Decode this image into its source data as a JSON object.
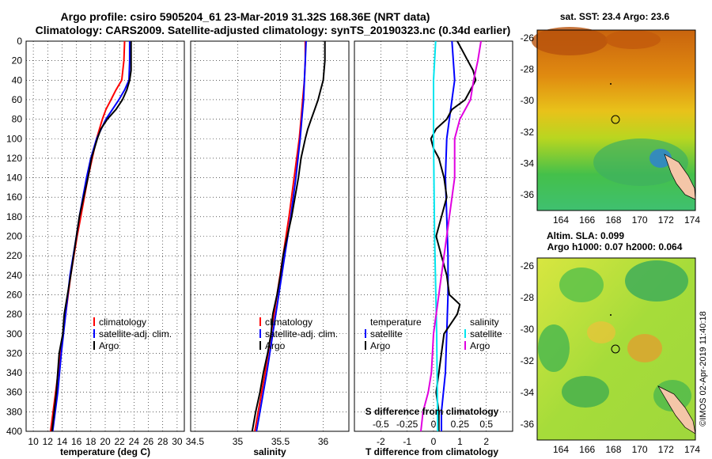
{
  "header": {
    "line1": "Argo profile: csiro 5905204_61 23-Mar-2019 31.32S 168.36E (NRT data)",
    "line2": "Climatology: CARS2009. Satellite-adjusted climatology: synTS_20190323.nc (0.34d earlier)"
  },
  "credit": "©IMOS 02-Apr-2019 11:40:18",
  "colors": {
    "climatology": "#ff0000",
    "satellite": "#0000ff",
    "argo": "#000000",
    "s_satellite": "#00e5ee",
    "s_argo": "#e000e0"
  },
  "chart_data": [
    {
      "type": "line",
      "name": "temperature",
      "xlabel": "temperature (deg C)",
      "ylabel": "",
      "xlim": [
        9,
        31
      ],
      "ylim": [
        400,
        0
      ],
      "xticks": [
        10,
        12,
        14,
        16,
        18,
        20,
        22,
        24,
        26,
        28,
        30
      ],
      "yticks": [
        0,
        20,
        40,
        60,
        80,
        100,
        120,
        140,
        160,
        180,
        200,
        220,
        240,
        260,
        280,
        300,
        320,
        340,
        360,
        380,
        400
      ],
      "legend": [
        "climatology",
        "satellite-adj. clim.",
        "Argo"
      ],
      "series": [
        {
          "name": "climatology",
          "color": "#ff0000",
          "depth": [
            0,
            20,
            40,
            50,
            60,
            70,
            80,
            100,
            120,
            140,
            160,
            180,
            200,
            240,
            280,
            320,
            360,
            400
          ],
          "values": [
            22.7,
            22.6,
            22.3,
            21.5,
            20.8,
            20.1,
            19.6,
            18.8,
            18.2,
            17.6,
            17.1,
            16.6,
            16.1,
            15.2,
            14.5,
            13.8,
            13.1,
            12.4
          ]
        },
        {
          "name": "satellite-adj. clim.",
          "color": "#0000ff",
          "depth": [
            0,
            20,
            40,
            50,
            60,
            70,
            80,
            100,
            120,
            140,
            160,
            180,
            200,
            240,
            280,
            320,
            360,
            400
          ],
          "values": [
            23.4,
            23.4,
            23.3,
            22.7,
            21.9,
            21.0,
            20.1,
            18.8,
            18.0,
            17.4,
            16.9,
            16.4,
            16.0,
            15.1,
            14.5,
            13.9,
            13.4,
            12.7
          ]
        },
        {
          "name": "Argo",
          "color": "#000000",
          "depth": [
            0,
            20,
            30,
            40,
            50,
            60,
            70,
            80,
            90,
            100,
            120,
            140,
            160,
            180,
            200,
            240,
            280,
            300,
            320,
            360,
            400
          ],
          "values": [
            23.6,
            23.6,
            23.6,
            23.4,
            23.0,
            22.4,
            21.5,
            20.3,
            19.4,
            18.9,
            18.1,
            17.6,
            17.0,
            16.4,
            16.0,
            15.2,
            14.3,
            14.1,
            13.6,
            13.2,
            12.6
          ]
        }
      ]
    },
    {
      "type": "line",
      "name": "salinity",
      "xlabel": "salinity",
      "ylabel": "",
      "xlim": [
        34.45,
        36.3
      ],
      "ylim": [
        400,
        0
      ],
      "xticks": [
        34.5,
        35,
        35.5,
        36
      ],
      "xticklabels": [
        "34.5",
        "35",
        "35.5",
        "36"
      ],
      "legend": [
        "climatology",
        "satellite-adj. clim.",
        "Argo"
      ],
      "series": [
        {
          "name": "climatology",
          "color": "#ff0000",
          "depth": [
            0,
            20,
            40,
            60,
            80,
            100,
            140,
            180,
            220,
            260,
            300,
            340,
            380,
            400
          ],
          "values": [
            35.79,
            35.79,
            35.78,
            35.76,
            35.74,
            35.72,
            35.66,
            35.6,
            35.53,
            35.46,
            35.39,
            35.32,
            35.24,
            35.2
          ]
        },
        {
          "name": "satellite-adj. clim.",
          "color": "#0000ff",
          "depth": [
            0,
            20,
            40,
            60,
            80,
            100,
            140,
            180,
            220,
            260,
            300,
            340,
            380,
            400
          ],
          "values": [
            35.8,
            35.79,
            35.78,
            35.77,
            35.75,
            35.73,
            35.68,
            35.62,
            35.55,
            35.48,
            35.41,
            35.34,
            35.26,
            35.22
          ]
        },
        {
          "name": "Argo",
          "color": "#000000",
          "depth": [
            0,
            20,
            30,
            40,
            50,
            60,
            70,
            80,
            90,
            100,
            120,
            140,
            160,
            180,
            200,
            220,
            240,
            260,
            280,
            300,
            320,
            340,
            360,
            380,
            400
          ],
          "values": [
            36.02,
            36.02,
            36.01,
            36.0,
            35.97,
            35.94,
            35.9,
            35.86,
            35.82,
            35.79,
            35.74,
            35.71,
            35.67,
            35.63,
            35.58,
            35.53,
            35.5,
            35.46,
            35.41,
            35.39,
            35.35,
            35.3,
            35.26,
            35.21,
            35.17
          ]
        }
      ]
    },
    {
      "type": "line",
      "name": "difference",
      "xlabel": "T difference from climatology",
      "xlabel_top": "S difference from climatology",
      "xlim": [
        -3,
        3
      ],
      "ylim": [
        400,
        0
      ],
      "xticks": [
        -2,
        -1,
        0,
        1,
        2
      ],
      "xticklabels": [
        "-2",
        "-1",
        "0",
        "1",
        "2"
      ],
      "sticks": [
        -0.5,
        -0.25,
        0,
        0.25,
        0.5
      ],
      "sticklabels": [
        "-0.5",
        "-0.25",
        "0",
        "0.25",
        "0.5"
      ],
      "legend_left_title": "temperature",
      "legend_right_title": "salinity",
      "legend_left": [
        "satellite",
        "Argo"
      ],
      "legend_right": [
        "satellite",
        "Argo"
      ],
      "series": [
        {
          "name": "T satellite",
          "color": "#0000ff",
          "depth": [
            0,
            20,
            40,
            60,
            80,
            100,
            140,
            180,
            220,
            260,
            300,
            340,
            380,
            400
          ],
          "values": [
            0.7,
            0.75,
            0.8,
            0.7,
            0.6,
            0.5,
            0.45,
            0.5,
            0.55,
            0.55,
            0.5,
            0.45,
            0.3,
            0.3
          ]
        },
        {
          "name": "T Argo",
          "color": "#000000",
          "depth": [
            0,
            10,
            20,
            30,
            40,
            50,
            60,
            70,
            80,
            90,
            100,
            110,
            120,
            140,
            160,
            180,
            200,
            220,
            240,
            260,
            270,
            280,
            300,
            320,
            340,
            360,
            380,
            400
          ],
          "values": [
            0.9,
            1.1,
            1.3,
            1.5,
            1.6,
            1.4,
            1.2,
            0.7,
            0.5,
            0.1,
            -0.1,
            0.0,
            0.2,
            0.4,
            0.5,
            0.3,
            0.1,
            0.3,
            0.5,
            0.6,
            1.0,
            0.9,
            0.4,
            0.3,
            0.2,
            0.1,
            0.2,
            0.2
          ]
        },
        {
          "name": "S satellite",
          "color": "#00e5ee",
          "depth": [
            0,
            40,
            100,
            200,
            300,
            400
          ],
          "values": [
            0.02,
            0.0,
            0.0,
            0.01,
            0.03,
            0.04
          ]
        },
        {
          "name": "S Argo",
          "color": "#e000e0",
          "depth": [
            0,
            20,
            40,
            60,
            80,
            100,
            140,
            180,
            220,
            260,
            300,
            340,
            360,
            380,
            400
          ],
          "values": [
            0.45,
            0.42,
            0.38,
            0.35,
            0.25,
            0.2,
            0.2,
            0.15,
            0.1,
            0.05,
            0.0,
            -0.02,
            -0.05,
            -0.1,
            -0.12
          ]
        }
      ]
    }
  ],
  "maps": {
    "sst": {
      "title": "sat. SST: 23.4 Argo: 23.6",
      "lon_ticks": [
        "164",
        "166",
        "168",
        "170",
        "172",
        "174"
      ],
      "lat_ticks": [
        "-26",
        "-28",
        "-30",
        "-32",
        "-34",
        "-36"
      ]
    },
    "sla": {
      "title1": "Altim. SLA: 0.099",
      "title2": "Argo h1000: 0.07 h2000: 0.064",
      "lon_ticks": [
        "164",
        "166",
        "168",
        "170",
        "172",
        "174"
      ],
      "lat_ticks": [
        "-26",
        "-28",
        "-30",
        "-32",
        "-34",
        "-36"
      ]
    }
  }
}
